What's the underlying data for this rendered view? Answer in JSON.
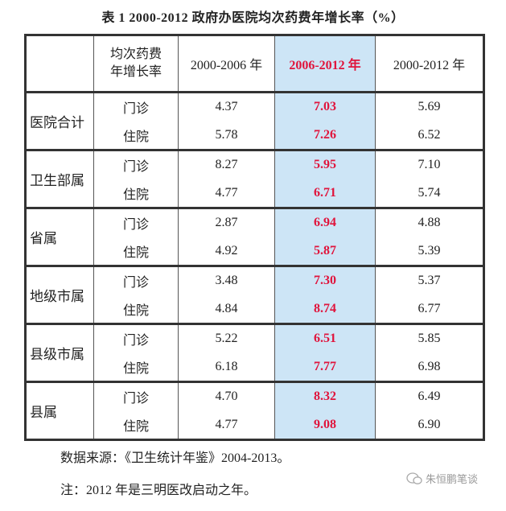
{
  "title": "表 1  2000-2012 政府办医院均次药费年增长率（%）",
  "table": {
    "header": [
      "均次药费年增长率",
      "2000-2006 年",
      "2006-2012 年",
      "2000-2012 年"
    ],
    "groups": [
      {
        "name": "医院合计",
        "rows": [
          {
            "type": "门诊",
            "values": [
              "4.37",
              "7.03",
              "5.69"
            ]
          },
          {
            "type": "住院",
            "values": [
              "5.78",
              "7.26",
              "6.52"
            ]
          }
        ]
      },
      {
        "name": "卫生部属",
        "rows": [
          {
            "type": "门诊",
            "values": [
              "8.27",
              "5.95",
              "7.10"
            ]
          },
          {
            "type": "住院",
            "values": [
              "4.77",
              "6.71",
              "5.74"
            ]
          }
        ]
      },
      {
        "name": "省属",
        "rows": [
          {
            "type": "门诊",
            "values": [
              "2.87",
              "6.94",
              "4.88"
            ]
          },
          {
            "type": "住院",
            "values": [
              "4.92",
              "5.87",
              "5.39"
            ]
          }
        ]
      },
      {
        "name": "地级市属",
        "rows": [
          {
            "type": "门诊",
            "values": [
              "3.48",
              "7.30",
              "5.37"
            ]
          },
          {
            "type": "住院",
            "values": [
              "4.84",
              "8.74",
              "6.77"
            ]
          }
        ]
      },
      {
        "name": "县级市属",
        "rows": [
          {
            "type": "门诊",
            "values": [
              "5.22",
              "6.51",
              "5.85"
            ]
          },
          {
            "type": "住院",
            "values": [
              "6.18",
              "7.77",
              "6.98"
            ]
          }
        ]
      },
      {
        "name": "县属",
        "rows": [
          {
            "type": "门诊",
            "values": [
              "4.70",
              "8.32",
              "6.49"
            ]
          },
          {
            "type": "住院",
            "values": [
              "4.77",
              "9.08",
              "6.90"
            ]
          }
        ]
      }
    ]
  },
  "notes": [
    "数据来源：《卫生统计年鉴》2004-2013。",
    "注：2012 年是三明医改启动之年。"
  ],
  "watermark": "朱恒鹏笔谈"
}
